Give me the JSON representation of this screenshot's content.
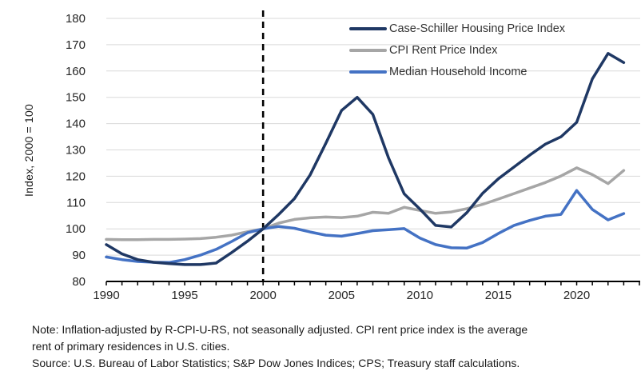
{
  "chart_data": {
    "type": "line",
    "title": "",
    "ylabel": "Index, 2000 = 100",
    "grid": true,
    "legend_position": "top-right",
    "x_axis": {
      "min": 1990,
      "max": 2024,
      "tick_every": 1,
      "tick_labels": [
        "1990",
        "1995",
        "2000",
        "2005",
        "2010",
        "2015",
        "2020"
      ],
      "label_years": [
        1990,
        1995,
        2000,
        2005,
        2010,
        2015,
        2020
      ]
    },
    "y_axis": {
      "min": 80,
      "max": 180,
      "step": 10,
      "tick_labels": [
        "80",
        "90",
        "100",
        "110",
        "120",
        "130",
        "140",
        "150",
        "160",
        "170",
        "180"
      ]
    },
    "reference_line": {
      "type": "vertical-dashed",
      "x": 2000
    },
    "years": [
      1990,
      1991,
      1992,
      1993,
      1994,
      1995,
      1996,
      1997,
      1998,
      1999,
      2000,
      2001,
      2002,
      2003,
      2004,
      2005,
      2006,
      2007,
      2008,
      2009,
      2010,
      2011,
      2012,
      2013,
      2014,
      2015,
      2016,
      2017,
      2018,
      2019,
      2020,
      2021,
      2022,
      2023
    ],
    "series": [
      {
        "name": "Case-Schiller Housing Price Index",
        "color": "#1f3864",
        "values": [
          94.0,
          90.5,
          88.3,
          87.3,
          86.8,
          86.4,
          86.4,
          87.0,
          91.0,
          95.3,
          100.0,
          105.5,
          111.5,
          120.5,
          132.5,
          145.0,
          150.0,
          143.5,
          127.0,
          113.3,
          107.5,
          101.3,
          100.7,
          106.2,
          113.5,
          119.0,
          123.5,
          128.0,
          132.2,
          135.0,
          140.5,
          157.0,
          166.7,
          163.2
        ]
      },
      {
        "name": "CPI Rent Price Index",
        "color": "#a6a6a6",
        "values": [
          96.0,
          95.9,
          95.9,
          96.0,
          96.0,
          96.1,
          96.3,
          96.8,
          97.6,
          98.9,
          100.0,
          102.2,
          103.6,
          104.2,
          104.5,
          104.3,
          104.8,
          106.3,
          105.9,
          108.2,
          107.0,
          105.9,
          106.4,
          107.7,
          109.3,
          111.3,
          113.4,
          115.5,
          117.6,
          120.1,
          123.2,
          120.6,
          117.2,
          122.2
        ]
      },
      {
        "name": "Median Household Income",
        "color": "#4472c4",
        "values": [
          89.3,
          88.3,
          87.6,
          87.3,
          87.2,
          88.3,
          90.0,
          92.2,
          95.2,
          98.5,
          100.0,
          100.9,
          100.2,
          98.8,
          97.6,
          97.2,
          98.2,
          99.3,
          99.7,
          100.1,
          96.5,
          94.0,
          92.8,
          92.7,
          94.8,
          98.2,
          101.3,
          103.2,
          104.8,
          105.5,
          114.6,
          107.4,
          103.4,
          105.8
        ]
      }
    ],
    "style": {
      "grid_color": "#d9d9d9",
      "axis_color": "#000000",
      "tick_label_color": "#262626",
      "line_width": 3.5
    }
  },
  "notes": [
    "Note: Inflation-adjusted by R-CPI-U-RS, not seasonally adjusted. CPI rent price index is the average",
    "rent of primary residences in U.S. cities.",
    "Source: U.S. Bureau of Labor Statistics; S&P Dow Jones Indices; CPS; Treasury staff calculations."
  ]
}
